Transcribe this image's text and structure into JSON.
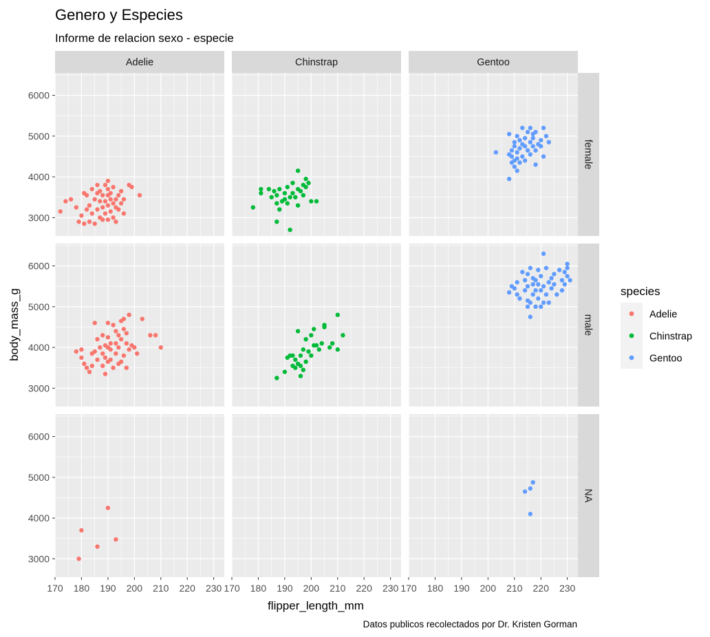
{
  "chart_data": {
    "type": "scatter",
    "title": "Genero y Especies",
    "subtitle": "Informe de relacion sexo - especie",
    "caption": "Datos publicos recolectados por Dr. Kristen Gorman",
    "xlabel": "flipper_length_mm",
    "ylabel": "body_mass_g",
    "xlim": [
      170,
      234
    ],
    "ylim": [
      2550,
      6550
    ],
    "x_ticks": [
      170,
      180,
      190,
      200,
      210,
      220,
      230
    ],
    "y_ticks": [
      3000,
      4000,
      5000,
      6000
    ],
    "columns": [
      "Adelie",
      "Chinstrap",
      "Gentoo"
    ],
    "rows": [
      "female",
      "male",
      "NA"
    ],
    "legend": {
      "title": "species",
      "position": "right",
      "entries": [
        "Adelie",
        "Chinstrap",
        "Gentoo"
      ]
    },
    "colors": {
      "Adelie": "#F8766D",
      "Chinstrap": "#00BA38",
      "Gentoo": "#619CFF",
      "panel": "#EBEBEB",
      "strip": "#D9D9D9",
      "grid": "#FFFFFF"
    },
    "series": [
      {
        "species": "Adelie",
        "sex": "female",
        "points": [
          [
            172,
            3150
          ],
          [
            174,
            3400
          ],
          [
            176,
            3450
          ],
          [
            178,
            3250
          ],
          [
            179,
            2900
          ],
          [
            180,
            3050
          ],
          [
            181,
            2850
          ],
          [
            181,
            3600
          ],
          [
            182,
            3200
          ],
          [
            182,
            3550
          ],
          [
            183,
            3300
          ],
          [
            183,
            2900
          ],
          [
            184,
            3700
          ],
          [
            184,
            3100
          ],
          [
            185,
            2850
          ],
          [
            185,
            3450
          ],
          [
            186,
            3600
          ],
          [
            186,
            3200
          ],
          [
            186,
            3800
          ],
          [
            187,
            3000
          ],
          [
            187,
            3400
          ],
          [
            187,
            3650
          ],
          [
            188,
            3250
          ],
          [
            188,
            3550
          ],
          [
            188,
            2950
          ],
          [
            189,
            3800
          ],
          [
            189,
            3100
          ],
          [
            189,
            3400
          ],
          [
            190,
            3700
          ],
          [
            190,
            3300
          ],
          [
            190,
            2950
          ],
          [
            190,
            3550
          ],
          [
            190,
            3900
          ],
          [
            191,
            3150
          ],
          [
            191,
            3450
          ],
          [
            191,
            3600
          ],
          [
            192,
            3000
          ],
          [
            192,
            3350
          ],
          [
            192,
            3750
          ],
          [
            193,
            2900
          ],
          [
            193,
            3250
          ],
          [
            193,
            3450
          ],
          [
            194,
            3550
          ],
          [
            194,
            3200
          ],
          [
            195,
            3350
          ],
          [
            195,
            3650
          ],
          [
            196,
            3450
          ],
          [
            196,
            3100
          ],
          [
            198,
            3800
          ],
          [
            199,
            3750
          ],
          [
            202,
            3550
          ]
        ]
      },
      {
        "species": "Adelie",
        "sex": "male",
        "points": [
          [
            178,
            3900
          ],
          [
            180,
            3750
          ],
          [
            180,
            3950
          ],
          [
            181,
            3600
          ],
          [
            182,
            3500
          ],
          [
            183,
            3400
          ],
          [
            184,
            3550
          ],
          [
            184,
            3850
          ],
          [
            185,
            3900
          ],
          [
            185,
            4600
          ],
          [
            186,
            3700
          ],
          [
            186,
            4200
          ],
          [
            187,
            4000
          ],
          [
            188,
            3550
          ],
          [
            188,
            3850
          ],
          [
            188,
            4300
          ],
          [
            189,
            3350
          ],
          [
            189,
            3750
          ],
          [
            189,
            4050
          ],
          [
            190,
            3650
          ],
          [
            190,
            4000
          ],
          [
            190,
            4250
          ],
          [
            190,
            4600
          ],
          [
            191,
            3700
          ],
          [
            191,
            3950
          ],
          [
            191,
            4100
          ],
          [
            192,
            3500
          ],
          [
            192,
            4550
          ],
          [
            193,
            3850
          ],
          [
            193,
            4100
          ],
          [
            193,
            4400
          ],
          [
            194,
            3600
          ],
          [
            194,
            4000
          ],
          [
            194,
            4300
          ],
          [
            195,
            3650
          ],
          [
            195,
            4200
          ],
          [
            195,
            4650
          ],
          [
            196,
            3800
          ],
          [
            196,
            4450
          ],
          [
            196,
            4700
          ],
          [
            197,
            3500
          ],
          [
            197,
            4100
          ],
          [
            197,
            4350
          ],
          [
            198,
            3950
          ],
          [
            198,
            4800
          ],
          [
            199,
            4050
          ],
          [
            200,
            4000
          ],
          [
            201,
            3850
          ],
          [
            203,
            4700
          ],
          [
            206,
            4300
          ],
          [
            208,
            4300
          ],
          [
            210,
            4000
          ]
        ]
      },
      {
        "species": "Adelie",
        "sex": "NA",
        "points": [
          [
            179,
            3000
          ],
          [
            180,
            3700
          ],
          [
            186,
            3300
          ],
          [
            190,
            4250
          ],
          [
            193,
            3475
          ]
        ]
      },
      {
        "species": "Chinstrap",
        "sex": "female",
        "points": [
          [
            178,
            3250
          ],
          [
            181,
            3700
          ],
          [
            181,
            3600
          ],
          [
            184,
            3700
          ],
          [
            185,
            3500
          ],
          [
            186,
            3650
          ],
          [
            187,
            2900
          ],
          [
            187,
            3350
          ],
          [
            187,
            3550
          ],
          [
            188,
            3200
          ],
          [
            188,
            3700
          ],
          [
            189,
            3400
          ],
          [
            190,
            3600
          ],
          [
            190,
            3450
          ],
          [
            191,
            3350
          ],
          [
            191,
            3750
          ],
          [
            192,
            2700
          ],
          [
            192,
            3500
          ],
          [
            193,
            3600
          ],
          [
            193,
            3850
          ],
          [
            194,
            3500
          ],
          [
            195,
            3300
          ],
          [
            195,
            3700
          ],
          [
            195,
            4150
          ],
          [
            196,
            3650
          ],
          [
            197,
            3800
          ],
          [
            197,
            3550
          ],
          [
            198,
            3950
          ],
          [
            198,
            3750
          ],
          [
            199,
            3850
          ],
          [
            200,
            3400
          ],
          [
            202,
            3400
          ]
        ]
      },
      {
        "species": "Chinstrap",
        "sex": "male",
        "points": [
          [
            187,
            3250
          ],
          [
            190,
            3400
          ],
          [
            191,
            3750
          ],
          [
            192,
            3800
          ],
          [
            193,
            3550
          ],
          [
            193,
            3800
          ],
          [
            194,
            3700
          ],
          [
            194,
            3500
          ],
          [
            195,
            3600
          ],
          [
            195,
            4400
          ],
          [
            196,
            3300
          ],
          [
            196,
            3550
          ],
          [
            196,
            3800
          ],
          [
            197,
            3450
          ],
          [
            197,
            3950
          ],
          [
            198,
            3650
          ],
          [
            198,
            4200
          ],
          [
            199,
            3900
          ],
          [
            200,
            3800
          ],
          [
            200,
            4300
          ],
          [
            201,
            4050
          ],
          [
            201,
            4450
          ],
          [
            202,
            4050
          ],
          [
            203,
            3950
          ],
          [
            204,
            4100
          ],
          [
            205,
            4500
          ],
          [
            205,
            4550
          ],
          [
            207,
            4000
          ],
          [
            208,
            4100
          ],
          [
            210,
            3950
          ],
          [
            210,
            4800
          ],
          [
            212,
            4300
          ]
        ]
      },
      {
        "species": "Chinstrap",
        "sex": "NA",
        "points": []
      },
      {
        "species": "Gentoo",
        "sex": "female",
        "points": [
          [
            203,
            4600
          ],
          [
            208,
            4550
          ],
          [
            208,
            5050
          ],
          [
            208,
            3950
          ],
          [
            209,
            4350
          ],
          [
            209,
            4500
          ],
          [
            209,
            4650
          ],
          [
            210,
            4250
          ],
          [
            210,
            4400
          ],
          [
            210,
            4750
          ],
          [
            210,
            4850
          ],
          [
            211,
            4150
          ],
          [
            211,
            4450
          ],
          [
            211,
            4600
          ],
          [
            211,
            5000
          ],
          [
            212,
            4700
          ],
          [
            212,
            4350
          ],
          [
            212,
            4900
          ],
          [
            213,
            4500
          ],
          [
            213,
            4800
          ],
          [
            213,
            5200
          ],
          [
            214,
            4400
          ],
          [
            214,
            4750
          ],
          [
            214,
            4950
          ],
          [
            215,
            5100
          ],
          [
            215,
            4650
          ],
          [
            216,
            4850
          ],
          [
            216,
            4550
          ],
          [
            216,
            5200
          ],
          [
            217,
            4750
          ],
          [
            217,
            4950
          ],
          [
            217,
            5050
          ],
          [
            218,
            4300
          ],
          [
            218,
            4650
          ],
          [
            218,
            5100
          ],
          [
            219,
            4800
          ],
          [
            220,
            4900
          ],
          [
            220,
            4750
          ],
          [
            221,
            5200
          ],
          [
            221,
            4500
          ],
          [
            222,
            5000
          ],
          [
            223,
            4850
          ]
        ]
      },
      {
        "species": "Gentoo",
        "sex": "male",
        "points": [
          [
            208,
            5350
          ],
          [
            209,
            5500
          ],
          [
            210,
            5450
          ],
          [
            211,
            5300
          ],
          [
            211,
            5600
          ],
          [
            212,
            5200
          ],
          [
            213,
            5850
          ],
          [
            214,
            5650
          ],
          [
            214,
            5400
          ],
          [
            215,
            5150
          ],
          [
            215,
            5500
          ],
          [
            215,
            5800
          ],
          [
            215,
            5000
          ],
          [
            216,
            4750
          ],
          [
            216,
            5100
          ],
          [
            216,
            5950
          ],
          [
            217,
            5700
          ],
          [
            217,
            5550
          ],
          [
            217,
            5300
          ],
          [
            218,
            5400
          ],
          [
            218,
            5000
          ],
          [
            218,
            5650
          ],
          [
            219,
            5900
          ],
          [
            219,
            5200
          ],
          [
            219,
            5550
          ],
          [
            220,
            5000
          ],
          [
            220,
            5400
          ],
          [
            220,
            5750
          ],
          [
            221,
            6300
          ],
          [
            221,
            5500
          ],
          [
            221,
            5100
          ],
          [
            222,
            5950
          ],
          [
            222,
            5300
          ],
          [
            223,
            5600
          ],
          [
            223,
            5100
          ],
          [
            224,
            5450
          ],
          [
            224,
            5700
          ],
          [
            225,
            5800
          ],
          [
            225,
            5550
          ],
          [
            226,
            5300
          ],
          [
            227,
            5900
          ],
          [
            228,
            5400
          ],
          [
            228,
            5650
          ],
          [
            229,
            5850
          ],
          [
            229,
            5550
          ],
          [
            230,
            6050
          ],
          [
            230,
            5750
          ],
          [
            231,
            5650
          ],
          [
            230,
            5950
          ]
        ]
      },
      {
        "species": "Gentoo",
        "sex": "NA",
        "points": [
          [
            214,
            4650
          ],
          [
            216,
            4725
          ],
          [
            216,
            4100
          ],
          [
            217,
            4875
          ]
        ]
      }
    ]
  }
}
